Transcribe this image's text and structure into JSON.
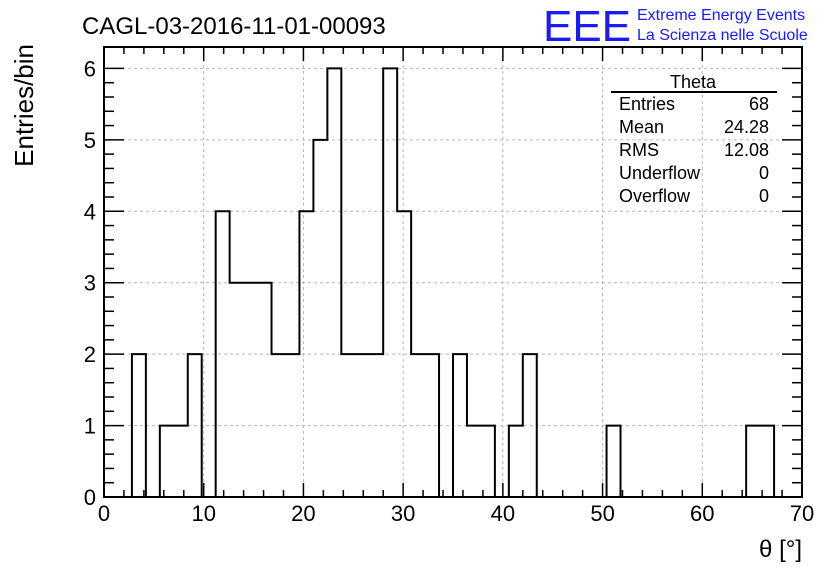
{
  "chart_data": {
    "type": "bar",
    "title": "CAGL-03-2016-11-01-00093",
    "xlabel": "θ [°]",
    "ylabel": "Entries/bin",
    "xlim": [
      0,
      70
    ],
    "ylim": [
      0,
      6.3
    ],
    "xticks": [
      "0",
      "10",
      "20",
      "30",
      "40",
      "50",
      "60",
      "70"
    ],
    "yticks": [
      "0",
      "1",
      "2",
      "3",
      "4",
      "5",
      "6"
    ],
    "grid": true,
    "bin_width": 1.4,
    "bins": [
      {
        "x": 2.8,
        "y": 2
      },
      {
        "x": 5.6,
        "y": 1
      },
      {
        "x": 7.0,
        "y": 1
      },
      {
        "x": 8.4,
        "y": 2
      },
      {
        "x": 11.2,
        "y": 4
      },
      {
        "x": 12.6,
        "y": 3
      },
      {
        "x": 14.0,
        "y": 3
      },
      {
        "x": 15.4,
        "y": 3
      },
      {
        "x": 16.8,
        "y": 2
      },
      {
        "x": 18.2,
        "y": 2
      },
      {
        "x": 19.6,
        "y": 4
      },
      {
        "x": 21.0,
        "y": 5
      },
      {
        "x": 22.4,
        "y": 6
      },
      {
        "x": 23.8,
        "y": 2
      },
      {
        "x": 25.2,
        "y": 2
      },
      {
        "x": 26.6,
        "y": 2
      },
      {
        "x": 28.0,
        "y": 6
      },
      {
        "x": 29.4,
        "y": 4
      },
      {
        "x": 30.8,
        "y": 2
      },
      {
        "x": 32.2,
        "y": 2
      },
      {
        "x": 35.0,
        "y": 2
      },
      {
        "x": 36.4,
        "y": 1
      },
      {
        "x": 37.8,
        "y": 1
      },
      {
        "x": 40.6,
        "y": 1
      },
      {
        "x": 42.0,
        "y": 2
      },
      {
        "x": 50.4,
        "y": 1
      },
      {
        "x": 64.4,
        "y": 1
      },
      {
        "x": 65.8,
        "y": 1
      }
    ],
    "stats": {
      "title": "Theta",
      "rows": [
        {
          "label": "Entries",
          "value": "68"
        },
        {
          "label": "Mean",
          "value": "24.28"
        },
        {
          "label": "RMS",
          "value": "12.08"
        },
        {
          "label": "Underflow",
          "value": "0"
        },
        {
          "label": "Overflow",
          "value": "0"
        }
      ]
    }
  },
  "logo": {
    "text": "EEE",
    "line1": "Extreme Energy Events",
    "line2": "La Scienza nelle Scuole",
    "color": "#1a1aff"
  }
}
